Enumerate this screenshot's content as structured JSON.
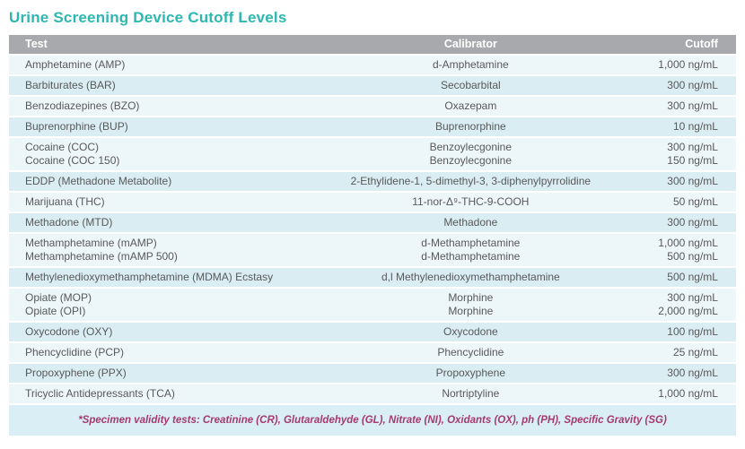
{
  "title": "Urine Screening Device Cutoff Levels",
  "colors": {
    "title_teal": "#2eb7b0",
    "header_gray": "#a7a9ac",
    "header_text": "#ffffff",
    "row_light_blue": "#edf6f9",
    "row_dark_blue": "#d9edf3",
    "body_text_gray": "#58595b",
    "footnote_magenta": "#a63a6e",
    "footnote_band_blue": "#d9eef5"
  },
  "table": {
    "columns": [
      "Test",
      "Calibrator",
      "Cutoff"
    ],
    "rows": [
      {
        "test": [
          "Amphetamine (AMP)"
        ],
        "calibrator": [
          "d-Amphetamine"
        ],
        "cutoff": [
          "1,000 ng/mL"
        ]
      },
      {
        "test": [
          "Barbiturates (BAR)"
        ],
        "calibrator": [
          "Secobarbital"
        ],
        "cutoff": [
          "300 ng/mL"
        ]
      },
      {
        "test": [
          "Benzodiazepines (BZO)"
        ],
        "calibrator": [
          "Oxazepam"
        ],
        "cutoff": [
          "300 ng/mL"
        ]
      },
      {
        "test": [
          "Buprenorphine (BUP)"
        ],
        "calibrator": [
          "Buprenorphine"
        ],
        "cutoff": [
          "10 ng/mL"
        ]
      },
      {
        "test": [
          "Cocaine (COC)",
          "Cocaine (COC 150)"
        ],
        "calibrator": [
          "Benzoylecgonine",
          "Benzoylecgonine"
        ],
        "cutoff": [
          "300 ng/mL",
          "150 ng/mL"
        ]
      },
      {
        "test": [
          "EDDP (Methadone Metabolite)"
        ],
        "calibrator": [
          "2-Ethylidene-1, 5-dimethyl-3, 3-diphenylpyrrolidine"
        ],
        "cutoff": [
          "300 ng/mL"
        ]
      },
      {
        "test": [
          "Marijuana (THC)"
        ],
        "calibrator": [
          "11-nor-Δ⁹-THC-9-COOH"
        ],
        "cutoff": [
          "50 ng/mL"
        ]
      },
      {
        "test": [
          "Methadone (MTD)"
        ],
        "calibrator": [
          "Methadone"
        ],
        "cutoff": [
          "300 ng/mL"
        ]
      },
      {
        "test": [
          "Methamphetamine (mAMP)",
          "Methamphetamine (mAMP 500)"
        ],
        "calibrator": [
          "d-Methamphetamine",
          "d-Methamphetamine"
        ],
        "cutoff": [
          "1,000 ng/mL",
          "500 ng/mL"
        ]
      },
      {
        "test": [
          "Methylenedioxymethamphetamine (MDMA) Ecstasy"
        ],
        "calibrator": [
          "d,l Methylenedioxymethamphetamine"
        ],
        "cutoff": [
          "500 ng/mL"
        ]
      },
      {
        "test": [
          "Opiate (MOP)",
          "Opiate (OPI)"
        ],
        "calibrator": [
          "Morphine",
          "Morphine"
        ],
        "cutoff": [
          "300 ng/mL",
          "2,000 ng/mL"
        ]
      },
      {
        "test": [
          "Oxycodone (OXY)"
        ],
        "calibrator": [
          "Oxycodone"
        ],
        "cutoff": [
          "100 ng/mL"
        ]
      },
      {
        "test": [
          "Phencyclidine (PCP)"
        ],
        "calibrator": [
          "Phencyclidine"
        ],
        "cutoff": [
          "25 ng/mL"
        ]
      },
      {
        "test": [
          "Propoxyphene (PPX)"
        ],
        "calibrator": [
          "Propoxyphene"
        ],
        "cutoff": [
          "300 ng/mL"
        ]
      },
      {
        "test": [
          "Tricyclic Antidepressants (TCA)"
        ],
        "calibrator": [
          "Nortriptyline"
        ],
        "cutoff": [
          "1,000 ng/mL"
        ]
      }
    ]
  },
  "footnote": "*Specimen validity tests: Creatinine (CR), Glutaraldehyde (GL), Nitrate (NI), Oxidants (OX), ph (PH), Specific Gravity (SG)"
}
